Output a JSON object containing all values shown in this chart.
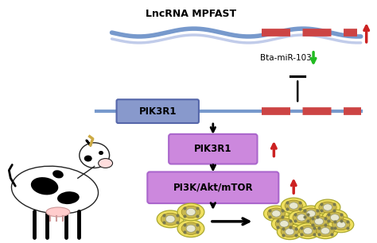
{
  "title": "LncRNA MPFAST",
  "background_color": "#ffffff",
  "lncrna_wave_color": "#7799cc",
  "red_segment_color": "#cc4444",
  "pik3r1_box_color": "#8899cc",
  "pik3r1_box2_color": "#cc88dd",
  "pi3k_box_color": "#cc88dd",
  "bta_mir_label": "Bta-miR-103",
  "pik3r1_label": "PIK3R1",
  "pik3r1_label2": "PIK3R1",
  "pi3k_label": "PI3K/Akt/mTOR",
  "arrow_color": "#111111",
  "green_arrow_color": "#22bb22",
  "red_arrow_color": "#cc2222",
  "cell_body_color": "#f0e060",
  "cell_nucleus_color": "#e8e8d0",
  "cell_inner_color": "#c8b850",
  "cell_dot_color": "#7a7a50"
}
